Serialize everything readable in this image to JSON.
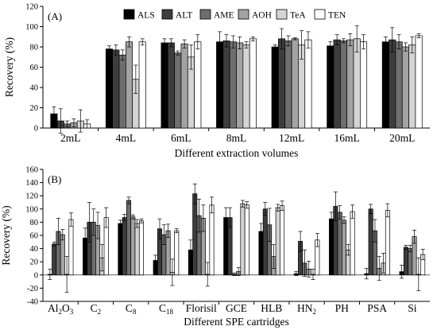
{
  "series_names": [
    "ALS",
    "ALT",
    "AME",
    "AOH",
    "TeA",
    "TEN"
  ],
  "colors": {
    "ALS": "#000000",
    "ALT": "#3d3d3d",
    "AME": "#6e6e6e",
    "AOH": "#a3a3a3",
    "TeA": "#d4d4d4",
    "TEN": "#ffffff"
  },
  "chart_data": [
    {
      "type": "bar",
      "panel_label": "(A)",
      "xlabel": "Different extraction volumes",
      "ylabel": "Recovery (%)",
      "ylim": [
        0,
        120
      ],
      "yticks": [
        0,
        20,
        40,
        60,
        80,
        100,
        120
      ],
      "legend": "top",
      "categories": [
        "2mL",
        "4mL",
        "6mL",
        "8mL",
        "12mL",
        "16mL",
        "20mL"
      ],
      "series": [
        {
          "name": "ALS",
          "values": [
            14,
            78,
            84,
            85,
            80,
            81,
            85
          ],
          "errors": [
            7,
            3,
            4,
            10,
            2,
            4,
            5
          ]
        },
        {
          "name": "ALT",
          "values": [
            7,
            77,
            84,
            86,
            88,
            87,
            87
          ],
          "errors": [
            12,
            5,
            4,
            6,
            10,
            5,
            12
          ]
        },
        {
          "name": "AME",
          "values": [
            4,
            72,
            74,
            85,
            86,
            86,
            85
          ],
          "errors": [
            3,
            5,
            2,
            6,
            5,
            2,
            7
          ]
        },
        {
          "name": "AOH",
          "values": [
            5,
            85,
            83,
            84,
            88,
            87,
            80
          ],
          "errors": [
            4,
            5,
            4,
            6,
            1,
            6,
            4
          ]
        },
        {
          "name": "TeA",
          "values": [
            7,
            48,
            70,
            82,
            82,
            88,
            82
          ],
          "errors": [
            11,
            14,
            12,
            3,
            14,
            13,
            8
          ]
        },
        {
          "name": "TEN",
          "values": [
            4,
            85,
            85,
            88,
            87,
            85,
            91
          ],
          "errors": [
            4,
            3,
            7,
            2,
            8,
            7,
            2
          ]
        }
      ]
    },
    {
      "type": "bar",
      "panel_label": "(B)",
      "xlabel": "Different SPE cartridges",
      "ylabel": "Recovery (%)",
      "ylim": [
        -40,
        160
      ],
      "yticks": [
        -40,
        -20,
        0,
        20,
        40,
        60,
        80,
        100,
        120,
        140,
        160
      ],
      "categories": [
        "Al2O3",
        "C2",
        "C8",
        "C18",
        "Florisil",
        "GCE",
        "HLB",
        "HN2",
        "PH",
        "PSA",
        "Si"
      ],
      "category_labels": [
        {
          "main": "Al",
          "sub": "2",
          "rest": "O",
          "sub2": "3"
        },
        {
          "main": "C",
          "sub": "2",
          "rest": "",
          "sub2": ""
        },
        {
          "main": "C",
          "sub": "8",
          "rest": "",
          "sub2": ""
        },
        {
          "main": "C",
          "sub": "18",
          "rest": "",
          "sub2": ""
        },
        {
          "main": "Florisil",
          "sub": "",
          "rest": "",
          "sub2": ""
        },
        {
          "main": "GCE",
          "sub": "",
          "rest": "",
          "sub2": ""
        },
        {
          "main": "HLB",
          "sub": "",
          "rest": "",
          "sub2": ""
        },
        {
          "main": "HN",
          "sub": "2",
          "rest": "",
          "sub2": ""
        },
        {
          "main": "PH",
          "sub": "",
          "rest": "",
          "sub2": ""
        },
        {
          "main": "PSA",
          "sub": "",
          "rest": "",
          "sub2": ""
        },
        {
          "main": "Si",
          "sub": "",
          "rest": "",
          "sub2": ""
        }
      ],
      "series": [
        {
          "name": "ALS",
          "values": [
            1,
            56,
            78,
            22,
            38,
            87,
            66,
            2,
            85,
            2,
            5
          ],
          "errors": [
            8,
            15,
            5,
            8,
            15,
            15,
            12,
            3,
            10,
            8,
            10
          ]
        },
        {
          "name": "ALT",
          "values": [
            47,
            80,
            87,
            70,
            123,
            87,
            100,
            51,
            104,
            100,
            42
          ],
          "errors": [
            3,
            30,
            5,
            15,
            15,
            15,
            10,
            15,
            22,
            7,
            3
          ]
        },
        {
          "name": "AME",
          "values": [
            66,
            80,
            113,
            61,
            90,
            1,
            76,
            18,
            95,
            67,
            40
          ],
          "errors": [
            20,
            20,
            5,
            15,
            25,
            2,
            25,
            20,
            10,
            17,
            5
          ]
        },
        {
          "name": "AOH",
          "values": [
            61,
            75,
            88,
            67,
            86,
            5,
            28,
            9,
            83,
            10,
            58
          ],
          "errors": [
            8,
            20,
            3,
            10,
            20,
            6,
            18,
            12,
            5,
            18,
            10
          ]
        },
        {
          "name": "TeA",
          "values": [
            1,
            26,
            78,
            4,
            1,
            108,
            102,
            1,
            38,
            18,
            1
          ],
          "errors": [
            27,
            20,
            6,
            20,
            18,
            5,
            5,
            8,
            8,
            15,
            25
          ]
        },
        {
          "name": "TEN",
          "values": [
            84,
            87,
            82,
            67,
            106,
            106,
            105,
            53,
            96,
            98,
            31
          ],
          "errors": [
            10,
            15,
            3,
            3,
            12,
            5,
            7,
            10,
            10,
            10,
            8
          ]
        }
      ]
    }
  ]
}
